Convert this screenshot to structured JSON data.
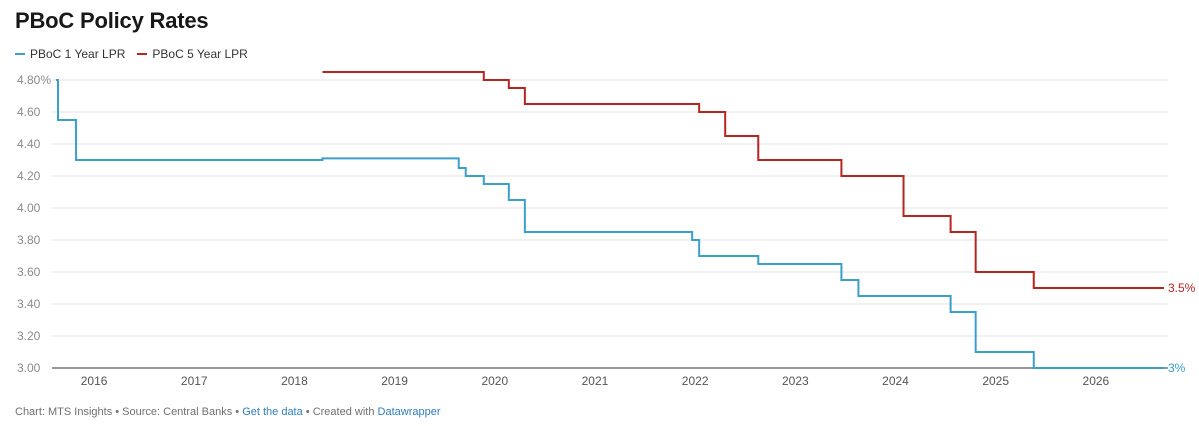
{
  "title": "PBoC Policy Rates",
  "colors": {
    "one_year": "#3a9fcb",
    "five_year": "#b5261e",
    "grid": "#e3e3e3"
  },
  "footer": {
    "prefix": "Chart: MTS Insights • Source: Central Banks • ",
    "get_data": "Get the data",
    "middle": " • Created with ",
    "datawrapper": "Datawrapper"
  },
  "chart_data": {
    "type": "line",
    "title": "PBoC Policy Rates",
    "xlabel": "",
    "ylabel": "",
    "xlim": [
      2015.58,
      2026.72
    ],
    "ylim": [
      3.0,
      4.9
    ],
    "y_ticks": [
      3.0,
      3.2,
      3.4,
      3.6,
      3.8,
      4.0,
      4.2,
      4.4,
      4.6,
      4.8
    ],
    "y_tick_labels": [
      "3.00",
      "3.20",
      "3.40",
      "3.60",
      "3.80",
      "4.00",
      "4.20",
      "4.40",
      "4.60",
      "4.80%"
    ],
    "x_ticks": [
      2016,
      2017,
      2018,
      2019,
      2020,
      2021,
      2022,
      2023,
      2024,
      2025,
      2026
    ],
    "x_tick_labels": [
      "2016",
      "2017",
      "2018",
      "2019",
      "2020",
      "2021",
      "2022",
      "2023",
      "2024",
      "2025",
      "2026"
    ],
    "step": true,
    "grid": true,
    "legend_position": "top-left",
    "series": [
      {
        "name": "PBoC 1 Year LPR",
        "end_label": "3%",
        "points": [
          [
            2015.62,
            4.8
          ],
          [
            2015.64,
            4.55
          ],
          [
            2015.82,
            4.3
          ],
          [
            2018.28,
            4.31
          ],
          [
            2019.64,
            4.25
          ],
          [
            2019.71,
            4.2
          ],
          [
            2019.89,
            4.15
          ],
          [
            2020.14,
            4.05
          ],
          [
            2020.3,
            3.85
          ],
          [
            2021.97,
            3.8
          ],
          [
            2022.04,
            3.7
          ],
          [
            2022.63,
            3.65
          ],
          [
            2023.46,
            3.55
          ],
          [
            2023.63,
            3.45
          ],
          [
            2024.55,
            3.35
          ],
          [
            2024.8,
            3.1
          ],
          [
            2025.38,
            3.0
          ],
          [
            2026.68,
            3.0
          ]
        ]
      },
      {
        "name": "PBoC 5 Year LPR",
        "end_label": "3.5%",
        "points": [
          [
            2018.28,
            4.85
          ],
          [
            2019.89,
            4.8
          ],
          [
            2020.14,
            4.75
          ],
          [
            2020.3,
            4.65
          ],
          [
            2022.04,
            4.6
          ],
          [
            2022.3,
            4.45
          ],
          [
            2022.63,
            4.3
          ],
          [
            2023.46,
            4.2
          ],
          [
            2024.08,
            3.95
          ],
          [
            2024.55,
            3.85
          ],
          [
            2024.8,
            3.6
          ],
          [
            2025.38,
            3.5
          ],
          [
            2026.68,
            3.5
          ]
        ]
      }
    ]
  }
}
